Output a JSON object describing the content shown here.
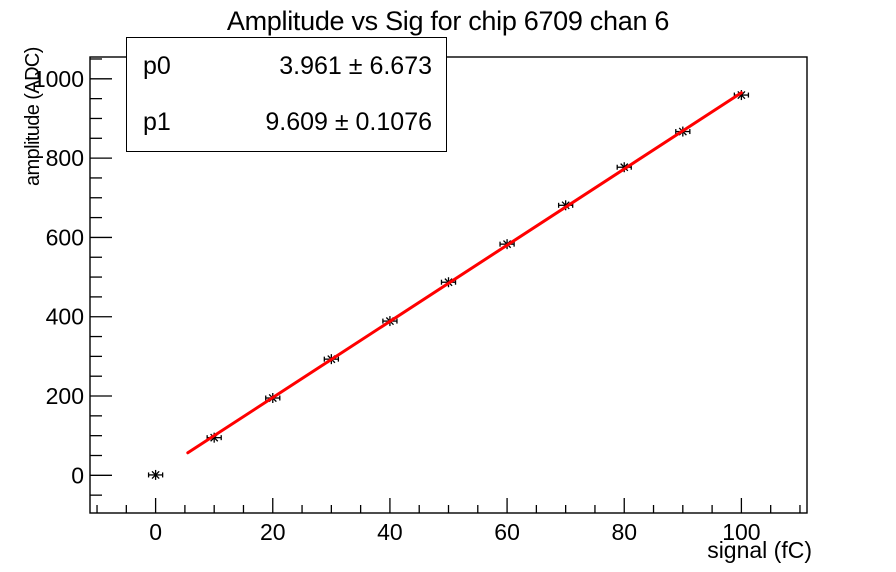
{
  "title": "Amplitude vs Sig for chip 6709 chan 6",
  "stats_box": {
    "rows": [
      {
        "param": "p0",
        "value": 3.961,
        "error": 6.673,
        "display": "3.961 ± 6.673"
      },
      {
        "param": "p1",
        "value": 9.609,
        "error": 0.1076,
        "display": "9.609 ± 0.1076"
      }
    ]
  },
  "chart_data": {
    "type": "scatter",
    "title": "Amplitude vs Sig for chip 6709 chan 6",
    "xlabel": "signal (fC)",
    "ylabel": "amplitude (ADC)",
    "x": [
      0,
      10,
      20,
      30,
      40,
      50,
      60,
      70,
      80,
      90,
      100
    ],
    "y": [
      1,
      95,
      195,
      293,
      389,
      487,
      583,
      681,
      777,
      867,
      959
    ],
    "x_error": 1.2,
    "marker": "asterisk",
    "marker_color": "#000000",
    "fit": {
      "type": "linear",
      "p0": 3.961,
      "p0_err": 6.673,
      "p1": 9.609,
      "p1_err": 0.1076,
      "draw_range": [
        5.5,
        100
      ],
      "color": "#ff0000"
    },
    "xlim": [
      -11.2,
      111.2
    ],
    "ylim": [
      -95,
      1055
    ],
    "x_major_ticks": [
      0,
      20,
      40,
      60,
      80,
      100
    ],
    "x_minor_step": 5,
    "y_major_ticks": [
      0,
      200,
      400,
      600,
      800,
      1000
    ],
    "y_minor_step": 50,
    "grid": false,
    "legend": "none",
    "axis_color": "#000000",
    "background_color": "#ffffff"
  }
}
